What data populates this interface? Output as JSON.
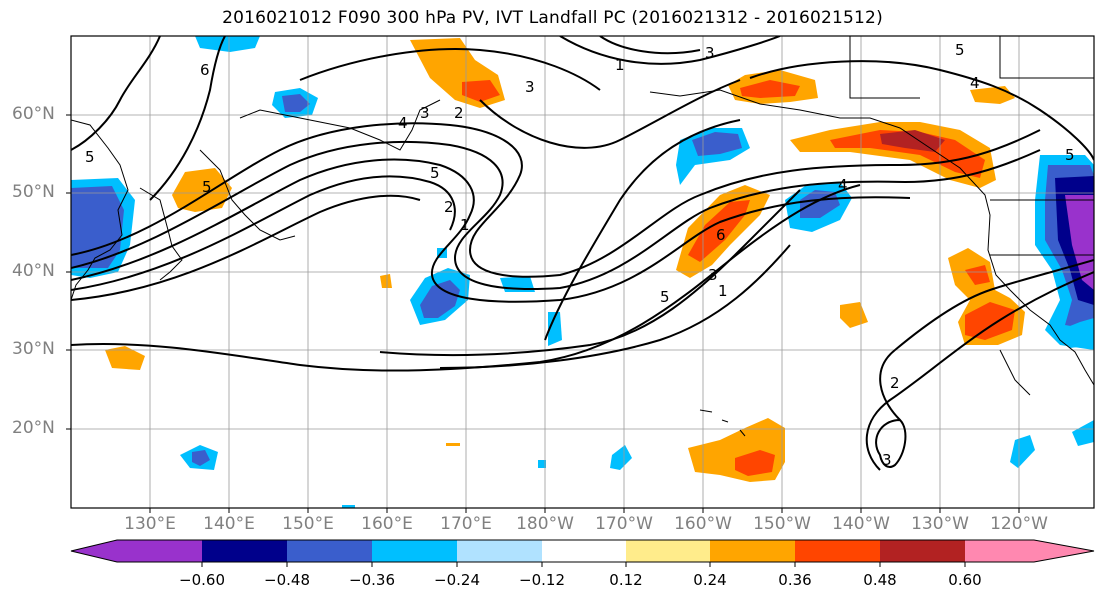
{
  "title": "2016021012 F090 300 hPa PV, IVT Landfall PC (2016021312 - 2016021512)",
  "lat_labels": [
    "60°N",
    "50°N",
    "40°N",
    "30°N",
    "20°N"
  ],
  "lon_labels": [
    "130°E",
    "140°E",
    "150°E",
    "160°E",
    "170°E",
    "180°W",
    "170°W",
    "160°W",
    "150°W",
    "140°W",
    "130°W",
    "120°W"
  ],
  "contour_labels": [
    "6",
    "5",
    "5",
    "4",
    "3",
    "2",
    "1",
    "5",
    "3",
    "2",
    "1",
    "6",
    "5",
    "3",
    "1",
    "4",
    "4",
    "5",
    "2",
    "3",
    "3",
    "5"
  ],
  "colorbar": {
    "ticks": [
      "−0.60",
      "−0.48",
      "−0.36",
      "−0.24",
      "−0.12",
      "0.12",
      "0.24",
      "0.36",
      "0.48",
      "0.60"
    ],
    "colors": [
      "#9932cc",
      "#00008b",
      "#3a5ecc",
      "#00bfff",
      "#b0e2ff",
      "#ffffff",
      "#ffec8b",
      "#ffa500",
      "#ff4500",
      "#b22222",
      "#ff88b0"
    ]
  }
}
